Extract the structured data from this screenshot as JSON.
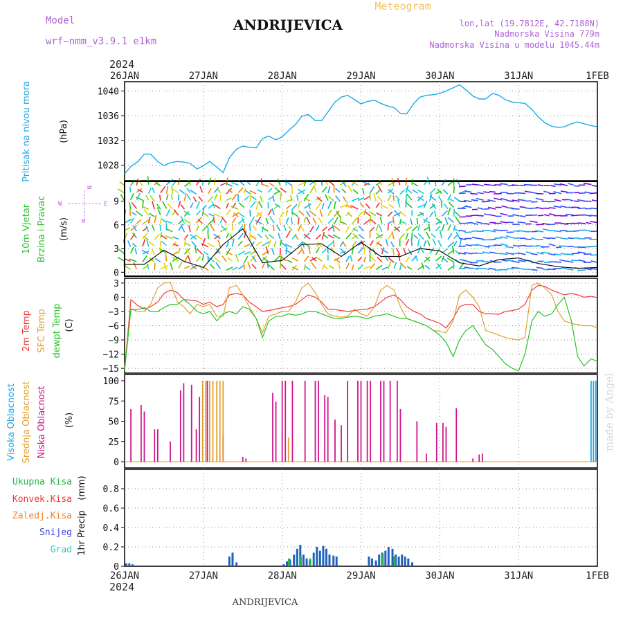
{
  "header": {
    "model_label": "Model",
    "model_name": "wrf−nmm_v3.9.1  e1km",
    "station": "ANDRIJEVICA",
    "meteogram": "Meteogram",
    "lonlat": "lon,lat (19.7812E, 42.7188N)",
    "elevation": "Nadmorska Visina 779m",
    "model_elevation": "Nadmorska Visina u modelu 1045.44m",
    "year": "2024",
    "footer_station": "ANDRIJEVICA",
    "watermark": "made by Angel"
  },
  "dates": [
    "26JAN",
    "27JAN",
    "28JAN",
    "29JAN",
    "30JAN",
    "31JAN",
    "1FEB"
  ],
  "wind_compass": {
    "north": "N",
    "east": "E",
    "west": "W",
    "angle": "α"
  },
  "colors": {
    "pressure": "#1ea8e6",
    "temp2m": "#ee3b3b",
    "sfc": "#e0a030",
    "dewpt": "#22c422",
    "high_cloud": "#1ea8e6",
    "mid_cloud": "#e0a030",
    "low_cloud": "#d0148c",
    "precip_total": "#22b84a",
    "precip_conv": "#ee3b3b",
    "precip_frozen": "#f07f30",
    "precip_snow": "#4444dd",
    "precip_graupel": "#30c8c8",
    "wind_speed": "#111111"
  },
  "chart_data": [
    {
      "type": "line",
      "panel": "pressure",
      "ylabel_main": "Pritisak na nivou mora",
      "ylabel_unit": "(hPa)",
      "ylim": [
        1025.5,
        1041.5
      ],
      "yticks": [
        "1028",
        "1032",
        "1036",
        "1040"
      ],
      "x_days": [
        0,
        0.08,
        0.17,
        0.25,
        0.33,
        0.42,
        0.5,
        0.58,
        0.67,
        0.75,
        0.83,
        0.92,
        1.0,
        1.08,
        1.17,
        1.25,
        1.33,
        1.42,
        1.5,
        1.58,
        1.67,
        1.75,
        1.83,
        1.92,
        2.0,
        2.08,
        2.17,
        2.25,
        2.33,
        2.42,
        2.5,
        2.58,
        2.67,
        2.75,
        2.83,
        2.92,
        3.0,
        3.08,
        3.17,
        3.25,
        3.33,
        3.42,
        3.5,
        3.58,
        3.67,
        3.75,
        3.83,
        3.92,
        4.0,
        4.08,
        4.17,
        4.25,
        4.33,
        4.42,
        4.5,
        4.58,
        4.67,
        4.75,
        4.83,
        4.92,
        5.0,
        5.08,
        5.17,
        5.25,
        5.33,
        5.42,
        5.5,
        5.58,
        5.67,
        5.75,
        5.83,
        5.92,
        6.0
      ],
      "series": [
        {
          "values": [
            1026.6,
            1027.8,
            1028.6,
            1029.8,
            1029.8,
            1028.6,
            1027.9,
            1028.4,
            1028.6,
            1028.5,
            1028.3,
            1027.4,
            1027.9,
            1028.6,
            1027.7,
            1026.8,
            1029.2,
            1030.6,
            1031.1,
            1030.9,
            1030.8,
            1032.3,
            1032.7,
            1032.1,
            1032.6,
            1033.6,
            1034.6,
            1035.9,
            1036.2,
            1035.2,
            1035.2,
            1036.6,
            1038.2,
            1039.0,
            1039.3,
            1038.6,
            1037.9,
            1038.3,
            1038.5,
            1038.0,
            1037.6,
            1037.3,
            1036.4,
            1036.3,
            1038.0,
            1039.0,
            1039.3,
            1039.4,
            1039.6,
            1040.0,
            1040.5,
            1041.0,
            1040.2,
            1039.2,
            1038.7,
            1038.7,
            1039.6,
            1039.3,
            1038.6,
            1038.2,
            1038.1,
            1038.0,
            1037.0,
            1035.8,
            1034.9,
            1034.3,
            1034.1,
            1034.2,
            1034.7,
            1035.0,
            1034.7,
            1034.4,
            1034.2
          ]
        }
      ]
    },
    {
      "type": "line",
      "panel": "wind",
      "ylabel_main": "10m Vjetar",
      "ylabel_sub": "Brzina i Pravac",
      "ylabel_unit": "(m/s)",
      "ylim": [
        -0.5,
        11.5
      ],
      "yticks": [
        "0",
        "3",
        "6",
        "9"
      ],
      "x_days": [
        0,
        0.25,
        0.5,
        0.75,
        1.0,
        1.25,
        1.5,
        1.75,
        2.0,
        2.25,
        2.5,
        2.75,
        3.0,
        3.25,
        3.5,
        3.75,
        4.0,
        4.25,
        4.5,
        4.75,
        5.0,
        5.25,
        5.5,
        5.75,
        6.0
      ],
      "series": [
        {
          "name": "speed",
          "values": [
            1.0,
            1.0,
            2.8,
            1.4,
            0.6,
            3.5,
            5.5,
            1.2,
            1.5,
            3.5,
            3.6,
            2.0,
            3.8,
            2.0,
            2.0,
            3.0,
            2.7,
            1.2,
            0.8,
            1.6,
            1.8,
            1.1,
            0.7,
            0.5,
            0.6
          ]
        }
      ]
    },
    {
      "type": "line",
      "panel": "temperature",
      "ylabel_main": "2m Temp",
      "ylabel_sub": "SFC Temp",
      "ylabel_sub2": "dewpt Temp",
      "ylabel_unit": "(C)",
      "ylim": [
        -16,
        4
      ],
      "yticks": [
        "3",
        "0",
        "−3",
        "−6",
        "−9",
        "−12",
        "−15"
      ],
      "x_days": [
        0,
        0.08,
        0.17,
        0.25,
        0.33,
        0.42,
        0.5,
        0.58,
        0.67,
        0.75,
        0.83,
        0.92,
        1.0,
        1.08,
        1.17,
        1.25,
        1.33,
        1.42,
        1.5,
        1.58,
        1.67,
        1.75,
        1.83,
        1.92,
        2.0,
        2.08,
        2.17,
        2.25,
        2.33,
        2.42,
        2.5,
        2.58,
        2.67,
        2.75,
        2.83,
        2.92,
        3.0,
        3.08,
        3.17,
        3.25,
        3.33,
        3.42,
        3.5,
        3.58,
        3.67,
        3.75,
        3.83,
        3.92,
        4.0,
        4.08,
        4.17,
        4.25,
        4.33,
        4.42,
        4.5,
        4.58,
        4.67,
        4.75,
        4.83,
        4.92,
        5.0,
        5.08,
        5.17,
        5.25,
        5.33,
        5.42,
        5.5,
        5.58,
        5.67,
        5.75,
        5.83,
        5.92,
        6.0
      ],
      "series": [
        {
          "name": "2m",
          "values": [
            -15.2,
            -0.5,
            -1.8,
            -2.5,
            -2.0,
            -1.0,
            0.8,
            1.5,
            1.0,
            -0.5,
            -0.6,
            -0.8,
            -1.5,
            -1.0,
            -2.0,
            -1.5,
            0.5,
            0.8,
            0.5,
            -1.0,
            -2.0,
            -3.0,
            -2.8,
            -2.5,
            -2.2,
            -2.0,
            -1.5,
            -0.5,
            0.5,
            0.0,
            -1.0,
            -2.5,
            -2.6,
            -2.8,
            -3.0,
            -2.8,
            -2.6,
            -2.5,
            -2.0,
            -1.0,
            0.0,
            0.5,
            -0.5,
            -2.0,
            -3.0,
            -3.5,
            -4.5,
            -5.0,
            -5.5,
            -6.5,
            -4.5,
            -2.0,
            -1.5,
            -1.5,
            -3.0,
            -3.5,
            -3.5,
            -3.6,
            -3.0,
            -2.8,
            -2.5,
            -1.5,
            1.5,
            2.5,
            2.3,
            1.5,
            1.0,
            0.5,
            0.8,
            0.5,
            0.0,
            0.2,
            -0.1
          ]
        },
        {
          "name": "sfc",
          "values": [
            -15.0,
            -2.5,
            -3.0,
            -3.0,
            -1.5,
            2.0,
            3.0,
            3.2,
            -1.0,
            -2.0,
            -3.5,
            -1.5,
            -2.0,
            -1.5,
            -4.0,
            -4.0,
            2.0,
            2.5,
            0.5,
            -2.0,
            -4.5,
            -7.5,
            -4.0,
            -3.5,
            -3.0,
            -3.0,
            -1.0,
            2.0,
            3.0,
            1.0,
            -1.5,
            -3.5,
            -4.0,
            -4.2,
            -4.0,
            -2.5,
            -3.5,
            -4.0,
            -2.0,
            1.5,
            2.5,
            1.5,
            -2.0,
            -4.5,
            -5.0,
            -5.5,
            -6.0,
            -7.0,
            -7.2,
            -7.5,
            -5.0,
            0.5,
            1.5,
            0.0,
            -2.0,
            -7.0,
            -7.5,
            -8.0,
            -8.5,
            -8.8,
            -9.0,
            -8.5,
            2.5,
            3.0,
            2.0,
            0.5,
            -3.0,
            -5.0,
            -5.5,
            -5.8,
            -6.0,
            -6.0,
            -6.5
          ]
        },
        {
          "name": "dewpt",
          "values": [
            -15.5,
            -2.5,
            -2.6,
            -2.2,
            -3.0,
            -3.0,
            -2.2,
            -1.5,
            -1.5,
            -0.5,
            -1.5,
            -3.0,
            -3.5,
            -3.0,
            -5.0,
            -3.5,
            -3.0,
            -3.5,
            -2.0,
            -2.5,
            -4.5,
            -8.5,
            -5.0,
            -4.0,
            -4.0,
            -3.5,
            -3.8,
            -3.5,
            -3.0,
            -3.0,
            -3.5,
            -4.0,
            -4.5,
            -4.5,
            -4.2,
            -4.0,
            -4.2,
            -4.5,
            -4.0,
            -3.8,
            -3.5,
            -4.0,
            -4.5,
            -4.5,
            -5.0,
            -5.5,
            -6.0,
            -7.0,
            -8.0,
            -9.5,
            -12.5,
            -9.0,
            -7.0,
            -6.0,
            -8.0,
            -10.0,
            -11.0,
            -12.5,
            -14.0,
            -15.0,
            -15.5,
            -12.0,
            -5.0,
            -3.0,
            -4.0,
            -3.5,
            -1.5,
            0.0,
            -5.0,
            -12.5,
            -14.5,
            -13.0,
            -13.5
          ]
        }
      ]
    },
    {
      "type": "bar",
      "panel": "cloud",
      "ylabel_high": "Visoka Oblacnost",
      "ylabel_mid": "Srednja Oblacnost",
      "ylabel_low": "Niska Oblacnost",
      "ylabel_unit": "(%)",
      "ylim": [
        0,
        100
      ],
      "yticks": [
        "0",
        "25",
        "50",
        "75",
        "100"
      ],
      "series": [
        {
          "name": "Niska",
          "x_days": [
            0.08,
            0.21,
            0.25,
            0.38,
            0.42,
            0.58,
            0.71,
            0.75,
            0.85,
            0.91,
            0.95,
            1.05,
            1.25,
            1.5,
            1.54,
            1.88,
            1.92,
            2.0,
            2.04,
            2.13,
            2.29,
            2.42,
            2.46,
            2.54,
            2.58,
            2.67,
            2.75,
            2.83,
            2.96,
            3.0,
            3.08,
            3.12,
            3.25,
            3.29,
            3.37,
            3.46,
            3.5,
            3.71,
            3.83,
            3.96,
            4.04,
            4.08,
            4.21,
            4.42,
            4.5,
            4.54
          ],
          "values": [
            65,
            70,
            62,
            40,
            40,
            25,
            88,
            97,
            95,
            40,
            80,
            100,
            33,
            6,
            4,
            85,
            74,
            100,
            100,
            100,
            100,
            100,
            100,
            82,
            80,
            52,
            45,
            100,
            100,
            100,
            100,
            100,
            100,
            100,
            100,
            100,
            65,
            50,
            10,
            48,
            48,
            43,
            66,
            4,
            9,
            10
          ]
        },
        {
          "name": "Srednja",
          "x_days": [
            0.99,
            1.03,
            1.08,
            1.12,
            1.17,
            1.21,
            1.25,
            2.08
          ],
          "values": [
            100,
            100,
            100,
            100,
            100,
            100,
            100,
            30
          ]
        },
        {
          "name": "Visoka",
          "x_days": [
            5.92,
            5.95,
            5.98
          ],
          "values": [
            100,
            100,
            100
          ]
        }
      ]
    },
    {
      "type": "bar",
      "panel": "precip",
      "ylabel_main": "1hr Precip",
      "ylabel_unit": "(mm)",
      "legend": [
        "Ukupna  Kisa",
        "Konvek.Kisa",
        "Zaledj.Kisa",
        "Snijeg",
        "Grad"
      ],
      "ylim": [
        0,
        1.0
      ],
      "yticks": [
        "0",
        "0.2",
        "0.4",
        "0.6",
        "0.8"
      ],
      "series": [
        {
          "name": "Snijeg",
          "x_days": [
            0.02,
            0.06,
            0.1,
            1.33,
            1.37,
            1.42,
            2.02,
            2.06,
            2.1,
            2.15,
            2.19,
            2.23,
            2.27,
            2.31,
            2.35,
            2.4,
            2.44,
            2.48,
            2.52,
            2.56,
            2.6,
            2.65,
            2.69,
            3.1,
            3.14,
            3.19,
            3.23,
            3.27,
            3.31,
            3.35,
            3.4,
            3.44,
            3.48,
            3.52,
            3.56,
            3.6,
            3.65
          ],
          "values": [
            0.03,
            0.03,
            0.02,
            0.1,
            0.14,
            0.04,
            0.02,
            0.05,
            0.07,
            0.12,
            0.18,
            0.22,
            0.12,
            0.08,
            0.06,
            0.14,
            0.2,
            0.16,
            0.21,
            0.18,
            0.12,
            0.11,
            0.1,
            0.1,
            0.08,
            0.06,
            0.12,
            0.14,
            0.16,
            0.2,
            0.18,
            0.12,
            0.1,
            0.12,
            0.1,
            0.08,
            0.04
          ]
        },
        {
          "name": "Ukupna",
          "x_days": [
            2.06,
            2.21,
            2.33,
            3.25,
            3.4
          ],
          "values": [
            0.08,
            0.1,
            0.08,
            0.12,
            0.1
          ]
        }
      ]
    }
  ]
}
